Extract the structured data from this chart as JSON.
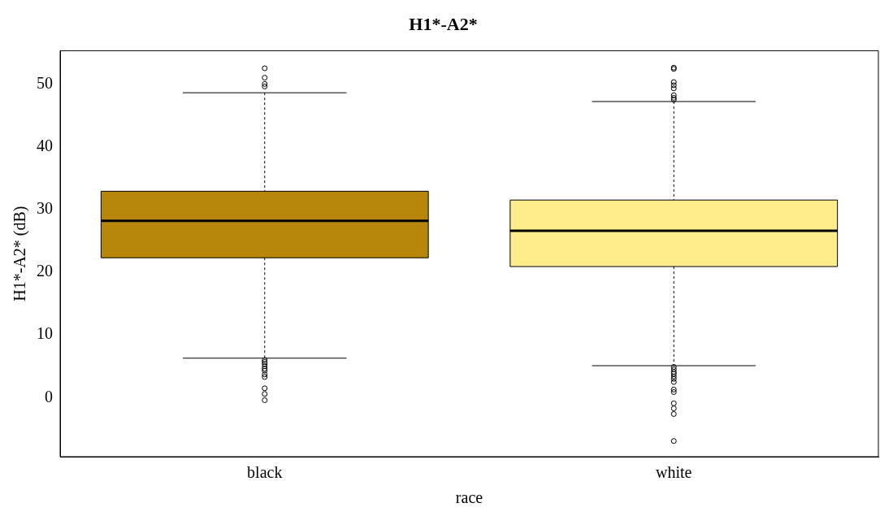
{
  "chart_data": {
    "type": "box",
    "title": "H1*-A2*",
    "xlabel": "race",
    "ylabel": "H1*-A2* (dB)",
    "categories": [
      "black",
      "white"
    ],
    "colors": [
      "#b8860b",
      "#ffec8b"
    ],
    "boxes": [
      {
        "low": 6.3,
        "q1": 22.3,
        "median": 28.2,
        "q3": 32.9,
        "high": 48.6,
        "outliers": [
          52.5,
          51.0,
          50.0,
          49.6,
          6.0,
          5.7,
          5.4,
          5.0,
          4.6,
          4.3,
          3.7,
          3.3,
          1.5,
          0.6,
          -0.4
        ]
      },
      {
        "low": 5.1,
        "q1": 20.9,
        "median": 26.6,
        "q3": 31.5,
        "high": 47.2,
        "outliers": [
          52.6,
          52.4,
          50.3,
          49.8,
          49.3,
          48.2,
          47.8,
          47.5,
          4.9,
          4.5,
          4.1,
          3.8,
          3.4,
          3.0,
          2.5,
          1.3,
          0.9,
          -0.9,
          -1.7,
          -2.6,
          -6.9
        ]
      }
    ],
    "ylim": [
      -9.4,
      55.3
    ],
    "yticks": [
      0,
      10,
      20,
      30,
      40,
      50
    ],
    "grid": false,
    "legend": false
  }
}
